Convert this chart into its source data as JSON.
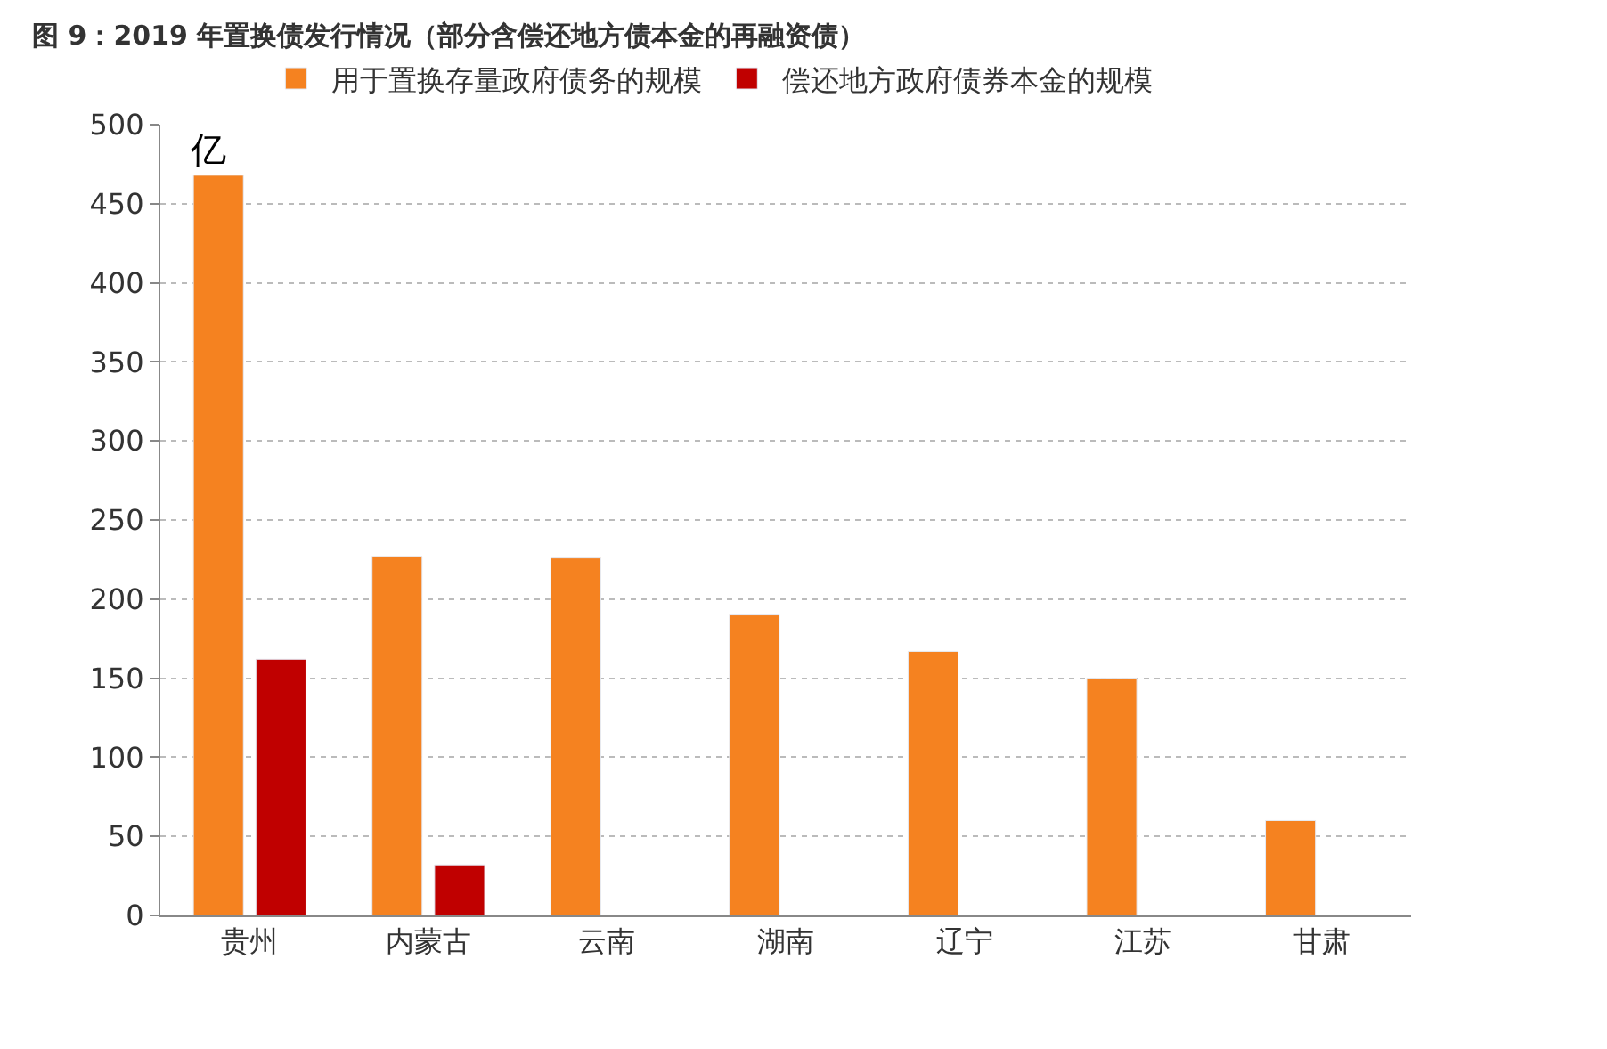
{
  "chart_data": {
    "type": "bar",
    "title": "图 9：2019 年置换债发行情况（部分含偿还地方债本金的再融资债）",
    "ylabel": "亿",
    "categories": [
      "贵州",
      "内蒙古",
      "云南",
      "湖南",
      "辽宁",
      "江苏",
      "甘肃"
    ],
    "series": [
      {
        "name": "用于置换存量政府债务的规模",
        "color": "#f58220",
        "values": [
          468,
          227,
          226,
          190,
          167,
          150,
          60
        ]
      },
      {
        "name": "偿还地方政府债券本金的规模",
        "color": "#c00000",
        "values": [
          162,
          32,
          null,
          null,
          null,
          null,
          null
        ]
      }
    ],
    "ylim": [
      0,
      500
    ],
    "yticks": [
      0,
      50,
      100,
      150,
      200,
      250,
      300,
      350,
      400,
      450,
      500
    ],
    "grid": "y",
    "legend": "top"
  }
}
